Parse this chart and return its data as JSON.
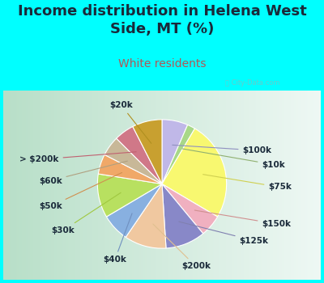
{
  "title": "Income distribution in Helena West\nSide, MT (%)",
  "subtitle": "White residents",
  "title_color": "#1a2a3a",
  "subtitle_color": "#b05858",
  "background_color": "#00ffff",
  "chart_bg": "#d8ede0",
  "labels": [
    "$100k",
    "$10k",
    "$75k",
    "$150k",
    "$125k",
    "$200k",
    "$40k",
    "$30k",
    "$50k",
    "$60k",
    "> $200k",
    "$20k"
  ],
  "sizes": [
    6.5,
    2.0,
    25.0,
    5.5,
    10.0,
    10.5,
    7.0,
    11.0,
    5.0,
    5.0,
    5.0,
    7.5
  ],
  "colors": [
    "#c0b8e8",
    "#a8d888",
    "#f8f870",
    "#f0b0c0",
    "#8888c8",
    "#f0c8a0",
    "#88b0e0",
    "#b8e060",
    "#f0a868",
    "#c8b898",
    "#d07888",
    "#c8a030"
  ],
  "watermark": "City-Data.com",
  "label_fontsize": 7.5,
  "title_fontsize": 13,
  "subtitle_fontsize": 10,
  "startangle": 90
}
